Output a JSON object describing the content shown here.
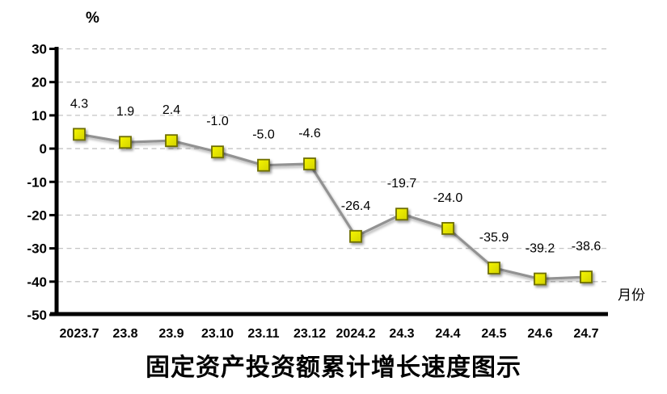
{
  "chart_data": {
    "type": "line",
    "title": "固定资产投资额累计增长速度图示",
    "ylabel": "%",
    "xlabel": "月份",
    "categories": [
      "2023.7",
      "23.8",
      "23.9",
      "23.10",
      "23.11",
      "23.12",
      "2024.2",
      "24.3",
      "24.4",
      "24.5",
      "24.6",
      "24.7"
    ],
    "values": [
      4.3,
      1.9,
      2.4,
      -1.0,
      -5.0,
      -4.6,
      -26.4,
      -19.7,
      -24.0,
      -35.9,
      -39.2,
      -38.6
    ],
    "point_labels": [
      "4.3",
      "1.9",
      "2.4",
      "-1.0",
      "-5.0",
      "-4.6",
      "-26.4",
      "-19.7",
      "-24.0",
      "-35.9",
      "-39.2",
      "-38.6"
    ],
    "ylim": [
      -50,
      30
    ],
    "ytick_step": 10,
    "ytick_labels": [
      "30",
      "20",
      "10",
      "0",
      "-10",
      "-20",
      "-30",
      "-40",
      "-50"
    ],
    "grid": "horizontal-dashed",
    "legend": "none",
    "colors": {
      "line": "#929292",
      "marker_fill_light": "#f6f600",
      "marker_fill_dark": "#d2d200",
      "marker_border": "#6e6e00",
      "grid": "#c4c4c4",
      "axis": "#000000",
      "text": "#000000"
    }
  }
}
